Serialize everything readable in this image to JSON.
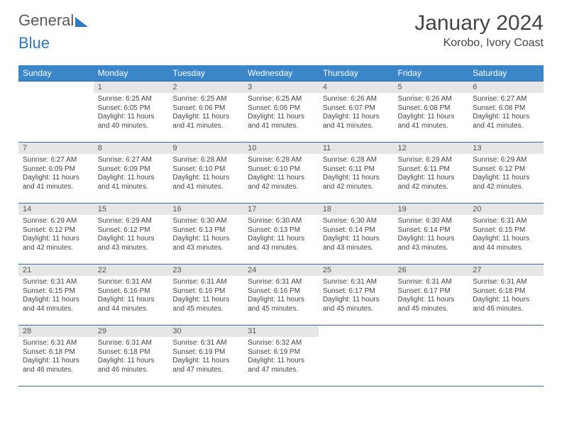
{
  "logo": {
    "part1": "General",
    "part2": "Blue"
  },
  "title": "January 2024",
  "location": "Korobo, Ivory Coast",
  "day_headers": [
    "Sunday",
    "Monday",
    "Tuesday",
    "Wednesday",
    "Thursday",
    "Friday",
    "Saturday"
  ],
  "colors": {
    "header_bg": "#3b86c8",
    "header_text": "#ffffff",
    "daynum_bg": "#e6e6e6",
    "rule": "#2f6ea8"
  },
  "weeks": [
    [
      null,
      {
        "n": "1",
        "sr": "Sunrise: 6:25 AM",
        "ss": "Sunset: 6:05 PM",
        "dl": "Daylight: 11 hours and 40 minutes."
      },
      {
        "n": "2",
        "sr": "Sunrise: 6:25 AM",
        "ss": "Sunset: 6:06 PM",
        "dl": "Daylight: 11 hours and 41 minutes."
      },
      {
        "n": "3",
        "sr": "Sunrise: 6:25 AM",
        "ss": "Sunset: 6:06 PM",
        "dl": "Daylight: 11 hours and 41 minutes."
      },
      {
        "n": "4",
        "sr": "Sunrise: 6:26 AM",
        "ss": "Sunset: 6:07 PM",
        "dl": "Daylight: 11 hours and 41 minutes."
      },
      {
        "n": "5",
        "sr": "Sunrise: 6:26 AM",
        "ss": "Sunset: 6:08 PM",
        "dl": "Daylight: 11 hours and 41 minutes."
      },
      {
        "n": "6",
        "sr": "Sunrise: 6:27 AM",
        "ss": "Sunset: 6:08 PM",
        "dl": "Daylight: 11 hours and 41 minutes."
      }
    ],
    [
      {
        "n": "7",
        "sr": "Sunrise: 6:27 AM",
        "ss": "Sunset: 6:09 PM",
        "dl": "Daylight: 11 hours and 41 minutes."
      },
      {
        "n": "8",
        "sr": "Sunrise: 6:27 AM",
        "ss": "Sunset: 6:09 PM",
        "dl": "Daylight: 11 hours and 41 minutes."
      },
      {
        "n": "9",
        "sr": "Sunrise: 6:28 AM",
        "ss": "Sunset: 6:10 PM",
        "dl": "Daylight: 11 hours and 41 minutes."
      },
      {
        "n": "10",
        "sr": "Sunrise: 6:28 AM",
        "ss": "Sunset: 6:10 PM",
        "dl": "Daylight: 11 hours and 42 minutes."
      },
      {
        "n": "11",
        "sr": "Sunrise: 6:28 AM",
        "ss": "Sunset: 6:11 PM",
        "dl": "Daylight: 11 hours and 42 minutes."
      },
      {
        "n": "12",
        "sr": "Sunrise: 6:29 AM",
        "ss": "Sunset: 6:11 PM",
        "dl": "Daylight: 11 hours and 42 minutes."
      },
      {
        "n": "13",
        "sr": "Sunrise: 6:29 AM",
        "ss": "Sunset: 6:12 PM",
        "dl": "Daylight: 11 hours and 42 minutes."
      }
    ],
    [
      {
        "n": "14",
        "sr": "Sunrise: 6:29 AM",
        "ss": "Sunset: 6:12 PM",
        "dl": "Daylight: 11 hours and 42 minutes."
      },
      {
        "n": "15",
        "sr": "Sunrise: 6:29 AM",
        "ss": "Sunset: 6:12 PM",
        "dl": "Daylight: 11 hours and 43 minutes."
      },
      {
        "n": "16",
        "sr": "Sunrise: 6:30 AM",
        "ss": "Sunset: 6:13 PM",
        "dl": "Daylight: 11 hours and 43 minutes."
      },
      {
        "n": "17",
        "sr": "Sunrise: 6:30 AM",
        "ss": "Sunset: 6:13 PM",
        "dl": "Daylight: 11 hours and 43 minutes."
      },
      {
        "n": "18",
        "sr": "Sunrise: 6:30 AM",
        "ss": "Sunset: 6:14 PM",
        "dl": "Daylight: 11 hours and 43 minutes."
      },
      {
        "n": "19",
        "sr": "Sunrise: 6:30 AM",
        "ss": "Sunset: 6:14 PM",
        "dl": "Daylight: 11 hours and 43 minutes."
      },
      {
        "n": "20",
        "sr": "Sunrise: 6:31 AM",
        "ss": "Sunset: 6:15 PM",
        "dl": "Daylight: 11 hours and 44 minutes."
      }
    ],
    [
      {
        "n": "21",
        "sr": "Sunrise: 6:31 AM",
        "ss": "Sunset: 6:15 PM",
        "dl": "Daylight: 11 hours and 44 minutes."
      },
      {
        "n": "22",
        "sr": "Sunrise: 6:31 AM",
        "ss": "Sunset: 6:16 PM",
        "dl": "Daylight: 11 hours and 44 minutes."
      },
      {
        "n": "23",
        "sr": "Sunrise: 6:31 AM",
        "ss": "Sunset: 6:16 PM",
        "dl": "Daylight: 11 hours and 45 minutes."
      },
      {
        "n": "24",
        "sr": "Sunrise: 6:31 AM",
        "ss": "Sunset: 6:16 PM",
        "dl": "Daylight: 11 hours and 45 minutes."
      },
      {
        "n": "25",
        "sr": "Sunrise: 6:31 AM",
        "ss": "Sunset: 6:17 PM",
        "dl": "Daylight: 11 hours and 45 minutes."
      },
      {
        "n": "26",
        "sr": "Sunrise: 6:31 AM",
        "ss": "Sunset: 6:17 PM",
        "dl": "Daylight: 11 hours and 45 minutes."
      },
      {
        "n": "27",
        "sr": "Sunrise: 6:31 AM",
        "ss": "Sunset: 6:18 PM",
        "dl": "Daylight: 11 hours and 46 minutes."
      }
    ],
    [
      {
        "n": "28",
        "sr": "Sunrise: 6:31 AM",
        "ss": "Sunset: 6:18 PM",
        "dl": "Daylight: 11 hours and 46 minutes."
      },
      {
        "n": "29",
        "sr": "Sunrise: 6:31 AM",
        "ss": "Sunset: 6:18 PM",
        "dl": "Daylight: 11 hours and 46 minutes."
      },
      {
        "n": "30",
        "sr": "Sunrise: 6:31 AM",
        "ss": "Sunset: 6:19 PM",
        "dl": "Daylight: 11 hours and 47 minutes."
      },
      {
        "n": "31",
        "sr": "Sunrise: 6:32 AM",
        "ss": "Sunset: 6:19 PM",
        "dl": "Daylight: 11 hours and 47 minutes."
      },
      null,
      null,
      null
    ]
  ]
}
